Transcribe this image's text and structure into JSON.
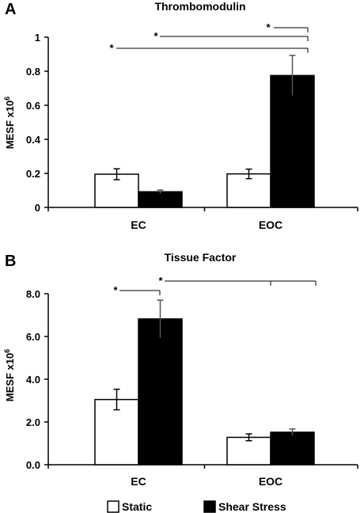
{
  "legend": {
    "static_label": "Static",
    "shear_label": "Shear Stress",
    "static_color": "#ffffff",
    "shear_color": "#000000"
  },
  "chart_data": [
    {
      "panel": "A",
      "type": "bar",
      "title": "Thrombomodulin",
      "ylabel": "MESF x10",
      "ylabel_superscript": "6",
      "categories": [
        "EC",
        "EOC"
      ],
      "series": [
        {
          "name": "Static",
          "values": [
            0.195,
            0.197
          ],
          "errors": [
            0.032,
            0.028
          ]
        },
        {
          "name": "Shear Stress",
          "values": [
            0.092,
            0.775
          ],
          "errors": [
            0.01,
            0.118
          ]
        }
      ],
      "ylim": [
        0,
        1
      ],
      "yticks": [
        "0",
        "0.2",
        "0.4",
        "0.6",
        "0.8",
        "1"
      ],
      "significance_marker": "*",
      "grid": false
    },
    {
      "panel": "B",
      "type": "bar",
      "title": "Tissue Factor",
      "ylabel": "MESF x10",
      "ylabel_superscript": "6",
      "categories": [
        "EC",
        "EOC"
      ],
      "series": [
        {
          "name": "Static",
          "values": [
            3.05,
            1.28
          ],
          "errors": [
            0.48,
            0.16
          ]
        },
        {
          "name": "Shear Stress",
          "values": [
            6.82,
            1.52
          ],
          "errors": [
            0.88,
            0.15
          ]
        }
      ],
      "ylim": [
        0,
        8
      ],
      "yticks": [
        "0.0",
        "2.0",
        "4.0",
        "6.0",
        "8.0"
      ],
      "significance_marker": "*",
      "grid": false
    }
  ]
}
